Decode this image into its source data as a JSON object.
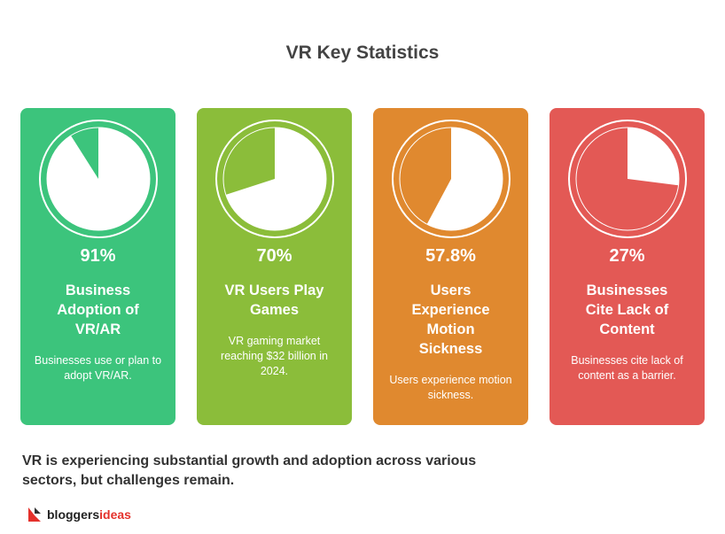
{
  "title": "VR Key Statistics",
  "cards": [
    {
      "value": 91,
      "value_label": "91%",
      "title": "Business Adoption of VR/AR",
      "description": "Businesses use or plan to adopt VR/AR.",
      "color": "#3cc47c"
    },
    {
      "value": 70,
      "value_label": "70%",
      "title": "VR Users Play Games",
      "description": "VR gaming market reaching $32 billion in 2024.",
      "color": "#8bbd3a"
    },
    {
      "value": 57.8,
      "value_label": "57.8%",
      "title": "Users Experience Motion Sickness",
      "description": "Users experience motion sickness.",
      "color": "#e0892f"
    },
    {
      "value": 27,
      "value_label": "27%",
      "title": "Businesses Cite Lack of Content",
      "description": "Businesses cite lack of content as a barrier.",
      "color": "#e35955"
    }
  ],
  "summary": "VR is experiencing substantial growth and adoption across various sectors, but challenges remain.",
  "logo": {
    "part1": "bloggers",
    "part2": "ideas"
  }
}
